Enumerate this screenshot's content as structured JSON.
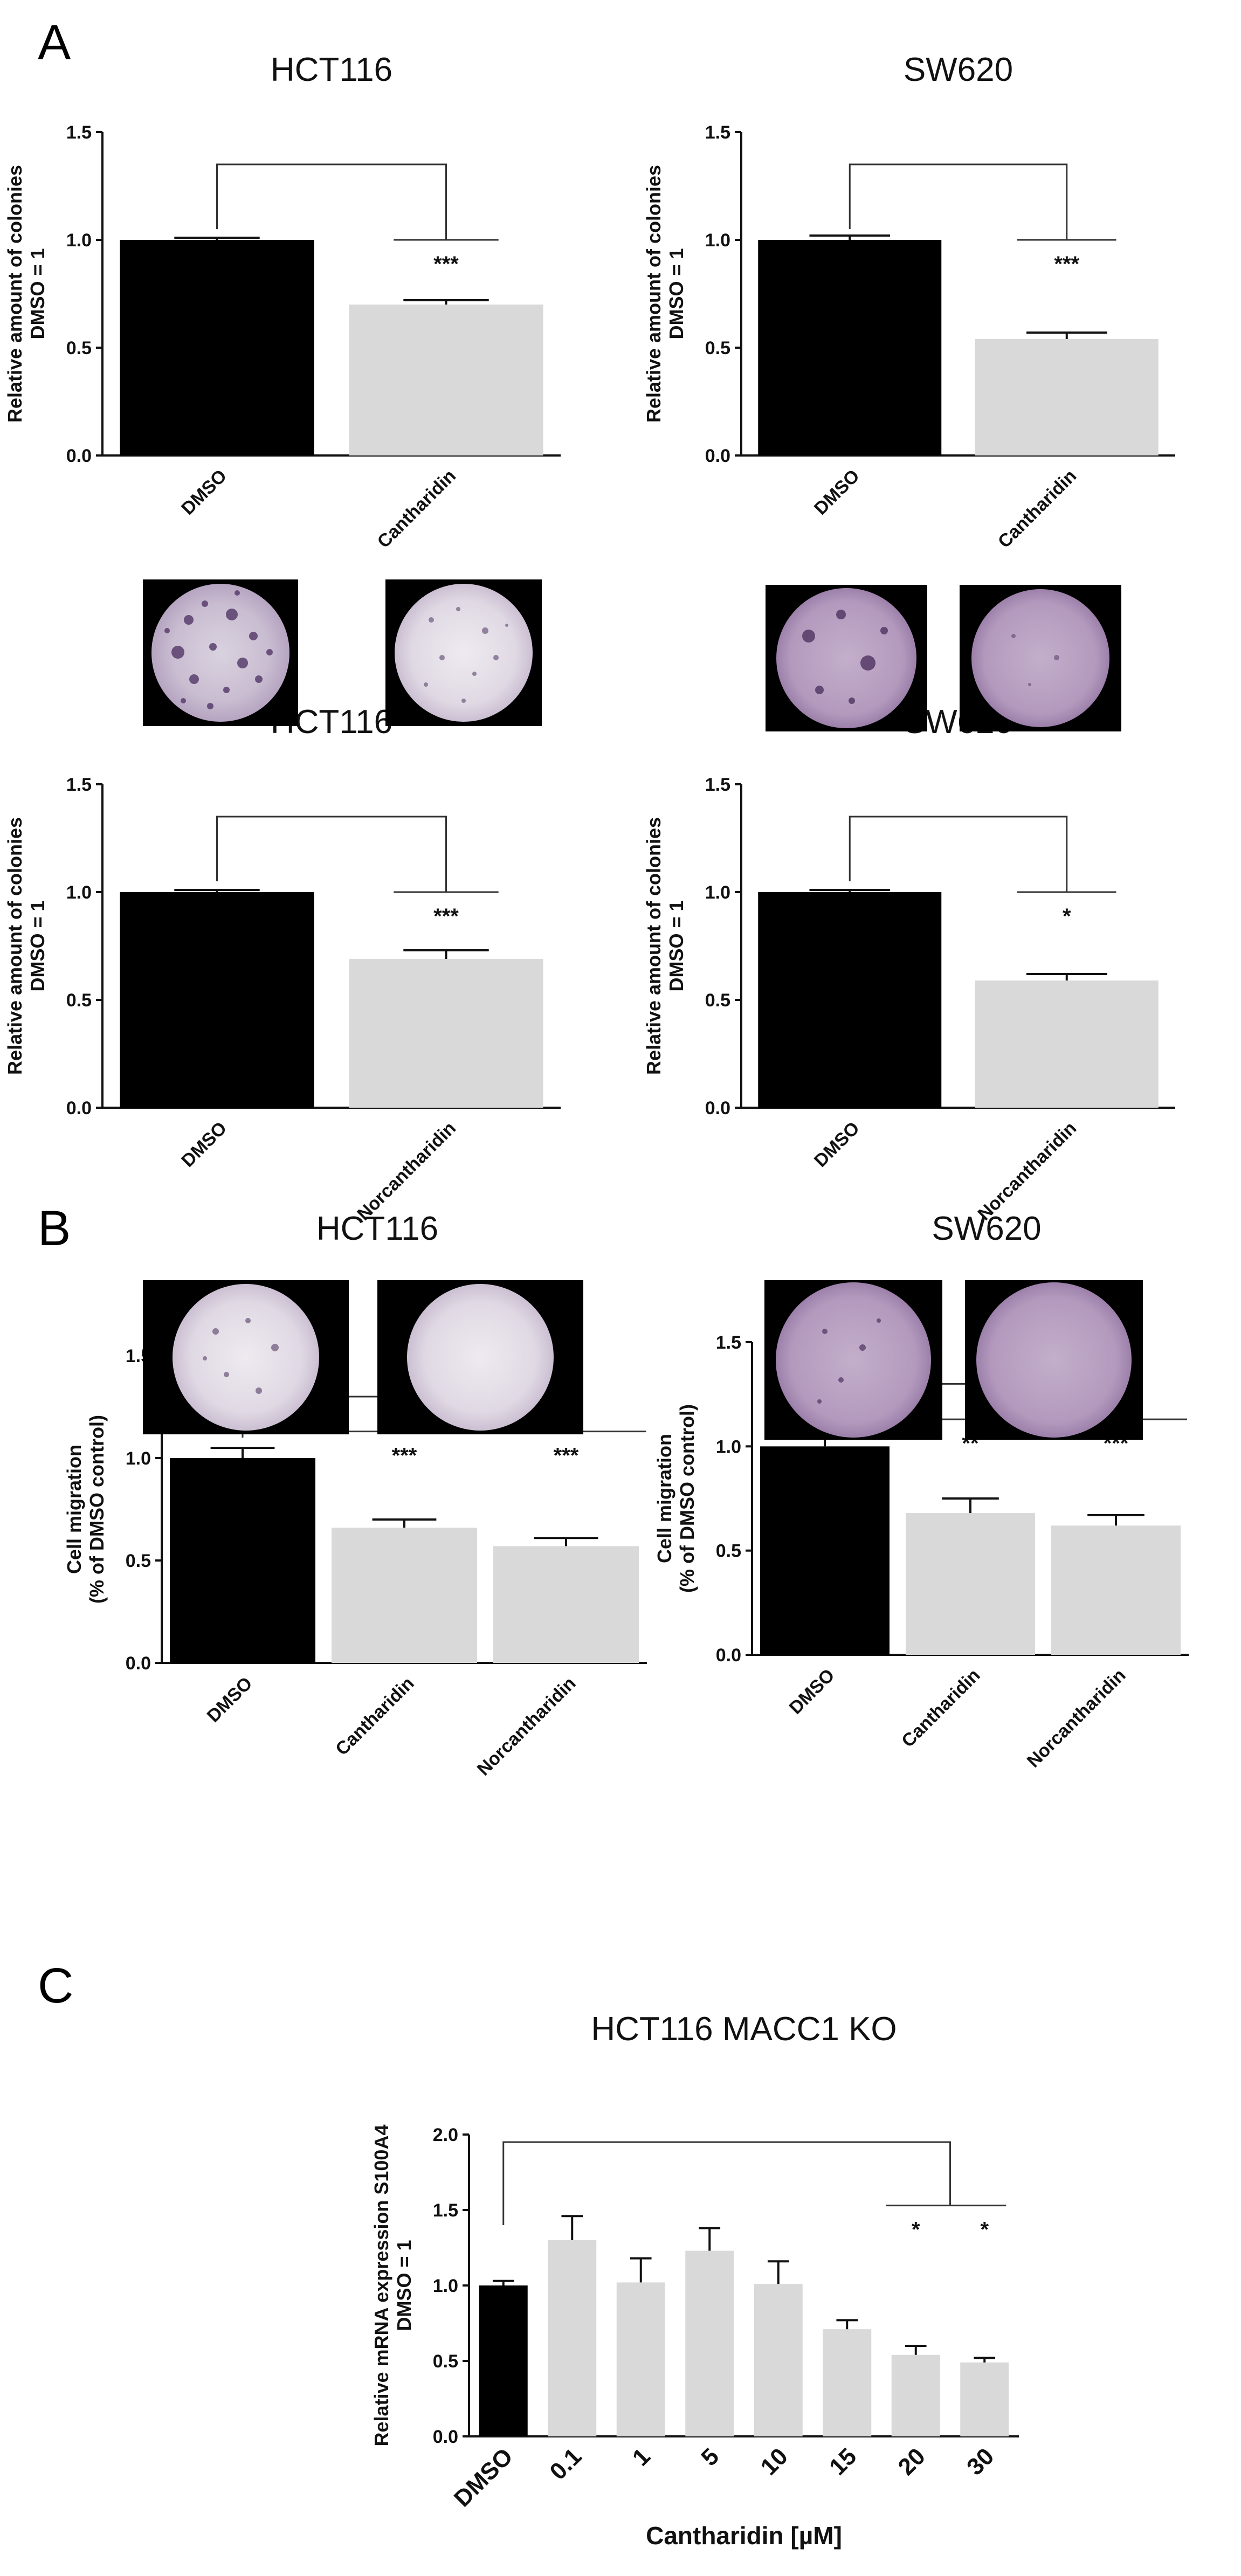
{
  "panel_labels": [
    "A",
    "B",
    "C"
  ],
  "colors": {
    "control": "#000000",
    "treated": "#d9d9d9"
  },
  "chart_data": [
    {
      "id": "A1",
      "type": "bar",
      "title": "HCT116",
      "ylabel": [
        "Relative amount of colonies",
        "DMSO = 1"
      ],
      "xlabel": "",
      "categories": [
        "DMSO",
        "Cantharidin"
      ],
      "values": [
        1.0,
        0.7
      ],
      "errors": [
        0.01,
        0.02
      ],
      "ylim": [
        0,
        1.5
      ],
      "yticks": [
        "0.0",
        "0.5",
        "1.0",
        "1.5"
      ],
      "significance": [
        "***"
      ],
      "grid": false,
      "legend": "none"
    },
    {
      "id": "A2",
      "type": "bar",
      "title": "SW620",
      "ylabel": [
        "Relative amount of colonies",
        "DMSO = 1"
      ],
      "xlabel": "",
      "categories": [
        "DMSO",
        "Cantharidin"
      ],
      "values": [
        1.0,
        0.54
      ],
      "errors": [
        0.02,
        0.03
      ],
      "ylim": [
        0,
        1.5
      ],
      "yticks": [
        "0.0",
        "0.5",
        "1.0",
        "1.5"
      ],
      "significance": [
        "***"
      ],
      "grid": false,
      "legend": "none"
    },
    {
      "id": "A3",
      "type": "bar",
      "title": "HCT116",
      "ylabel": [
        "Relative amount of colonies",
        "DMSO = 1"
      ],
      "xlabel": "",
      "categories": [
        "DMSO",
        "Norcantharidin"
      ],
      "values": [
        1.0,
        0.69
      ],
      "errors": [
        0.01,
        0.04
      ],
      "ylim": [
        0,
        1.5
      ],
      "yticks": [
        "0.0",
        "0.5",
        "1.0",
        "1.5"
      ],
      "significance": [
        "***"
      ],
      "grid": false,
      "legend": "none"
    },
    {
      "id": "A4",
      "type": "bar",
      "title": "SW620",
      "ylabel": [
        "Relative amount of colonies",
        "DMSO = 1"
      ],
      "xlabel": "",
      "categories": [
        "DMSO",
        "Norcantharidin"
      ],
      "values": [
        1.0,
        0.59
      ],
      "errors": [
        0.01,
        0.03
      ],
      "ylim": [
        0,
        1.5
      ],
      "yticks": [
        "0.0",
        "0.5",
        "1.0",
        "1.5"
      ],
      "significance": [
        "*"
      ],
      "grid": false,
      "legend": "none"
    },
    {
      "id": "B1",
      "type": "bar",
      "title": "HCT116",
      "ylabel": [
        "Cell migration",
        "(% of DMSO control)"
      ],
      "xlabel": "",
      "categories": [
        "DMSO",
        "Cantharidin",
        "Norcantharidin"
      ],
      "values": [
        1.0,
        0.66,
        0.57
      ],
      "errors": [
        0.05,
        0.04,
        0.04
      ],
      "ylim": [
        0,
        1.5
      ],
      "yticks": [
        "0.0",
        "0.5",
        "1.0",
        "1.5"
      ],
      "significance": [
        "***",
        "***"
      ],
      "grid": false,
      "legend": "none"
    },
    {
      "id": "B2",
      "type": "bar",
      "title": "SW620",
      "ylabel": [
        "Cell migration",
        "(% of DMSO control)"
      ],
      "xlabel": "",
      "categories": [
        "DMSO",
        "Cantharidin",
        "Norcantharidin"
      ],
      "values": [
        1.0,
        0.68,
        0.62
      ],
      "errors": [
        0.07,
        0.07,
        0.05
      ],
      "ylim": [
        0,
        1.5
      ],
      "yticks": [
        "0.0",
        "0.5",
        "1.0",
        "1.5"
      ],
      "significance": [
        "**",
        "***"
      ],
      "grid": false,
      "legend": "none"
    },
    {
      "id": "C",
      "type": "bar",
      "title": "HCT116 MACC1 KO",
      "ylabel": [
        "Relative mRNA expression  S100A4",
        "DMSO  = 1"
      ],
      "xlabel": "Cantharidin [µM]",
      "categories": [
        "DMSO",
        "0.1",
        "1",
        "5",
        "10",
        "15",
        "20",
        "30"
      ],
      "values": [
        1.0,
        1.3,
        1.02,
        1.23,
        1.01,
        0.71,
        0.54,
        0.49
      ],
      "errors": [
        0.03,
        0.16,
        0.16,
        0.15,
        0.15,
        0.06,
        0.06,
        0.03
      ],
      "ylim": [
        0,
        2.0
      ],
      "yticks": [
        "0.0",
        "0.5",
        "1.0",
        "1.5",
        "2.0"
      ],
      "significance": [
        "*",
        "*"
      ],
      "grid": false,
      "legend": "none"
    }
  ]
}
